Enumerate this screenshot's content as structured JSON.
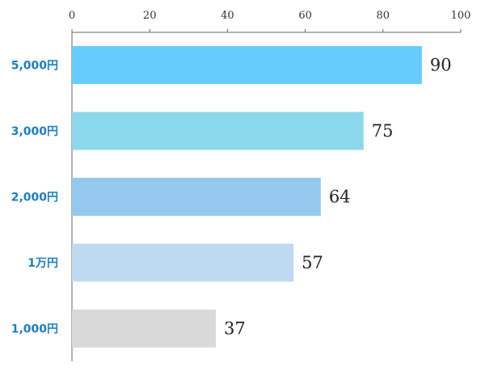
{
  "chart_data": {
    "type": "bar",
    "orientation": "horizontal",
    "categories": [
      "5,000円",
      "3,000円",
      "2,000円",
      "1万円",
      "1,000円"
    ],
    "values": [
      90,
      75,
      64,
      57,
      37
    ],
    "bar_colors": [
      "#66ccff",
      "#8ad8ea",
      "#94c9ee",
      "#bedaf2",
      "#d9d9d9"
    ],
    "xlim": [
      0,
      100
    ],
    "xticks": [
      "0",
      "20",
      "40",
      "60",
      "80",
      "100"
    ],
    "xtick_values": [
      0,
      20,
      40,
      60,
      80,
      100
    ],
    "x_axis_position": "top",
    "grid": false,
    "data_labels": [
      "90",
      "75",
      "64",
      "57",
      "37"
    ],
    "category_label_color": "#1a7fc7"
  }
}
